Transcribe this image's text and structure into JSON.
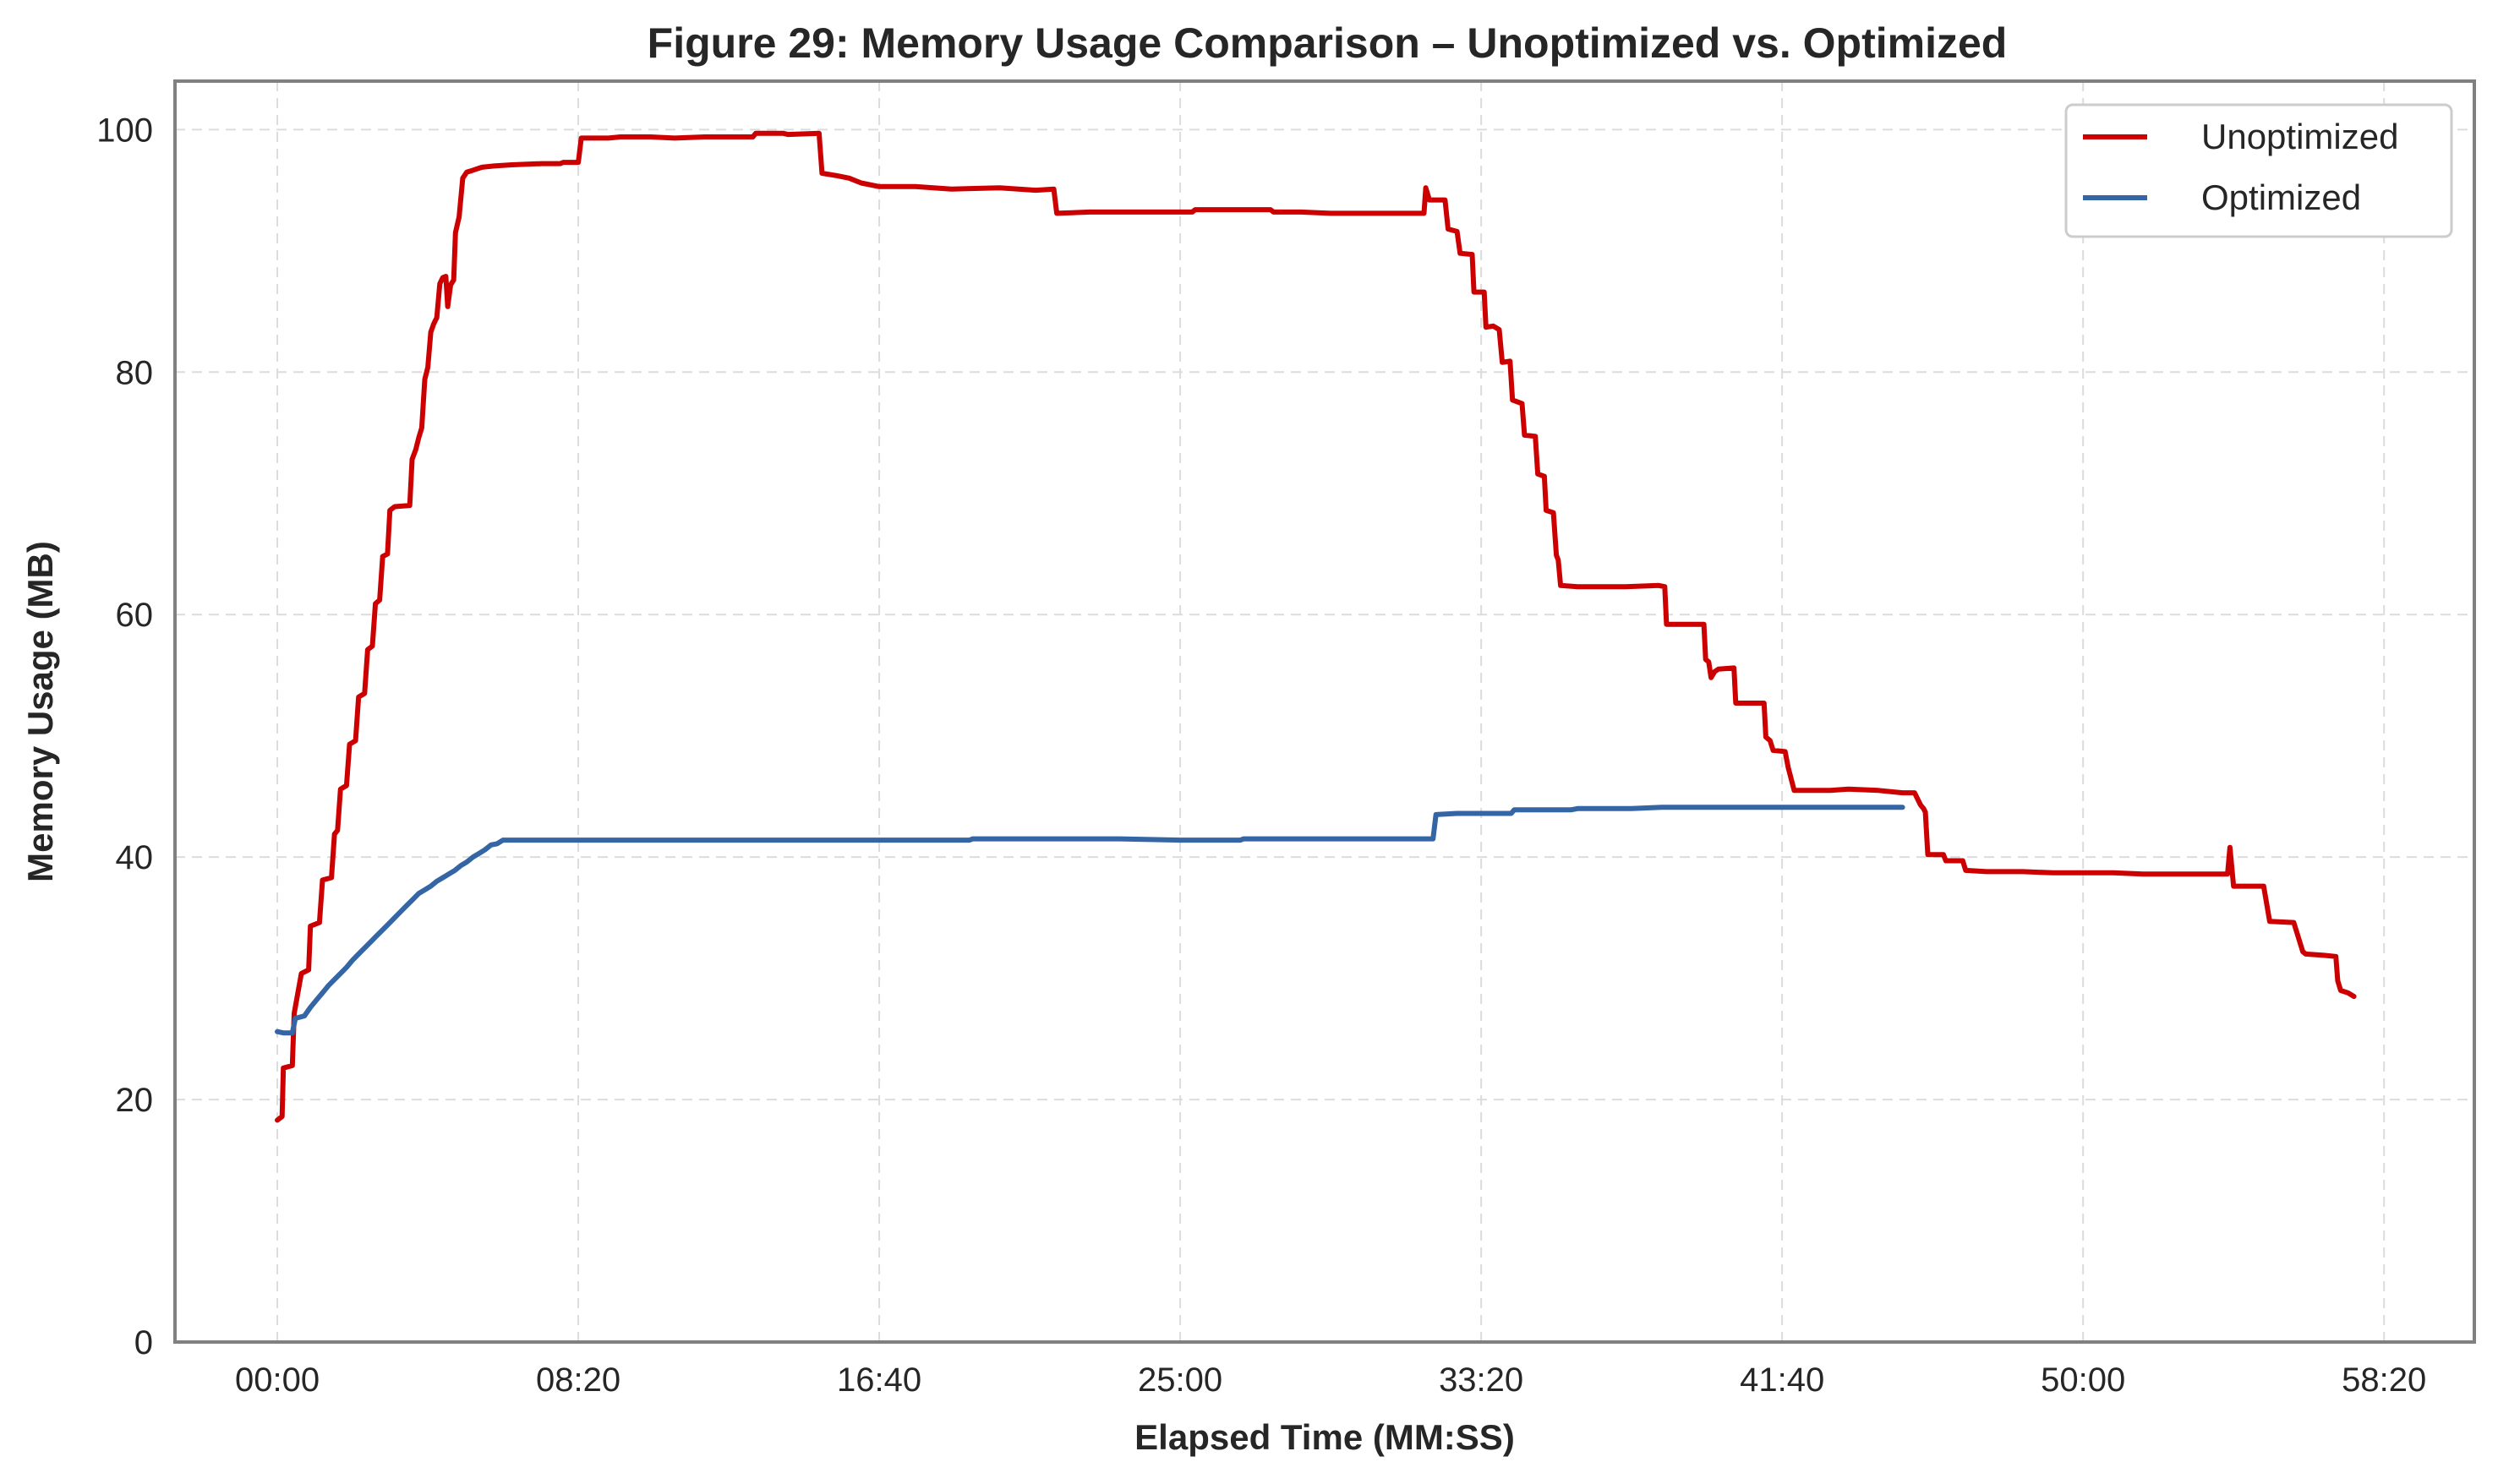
{
  "chart_data": {
    "type": "line",
    "title": "Figure 29: Memory Usage Comparison – Unoptimized vs. Optimized",
    "xlabel": "Elapsed Time (MM:SS)",
    "ylabel": "Memory Usage (MB)",
    "x_unit": "seconds",
    "xlim": [
      -170,
      3650
    ],
    "ylim": [
      0,
      104
    ],
    "x_ticks": [
      0,
      500,
      1000,
      1500,
      2000,
      2500,
      3000,
      3500
    ],
    "x_tick_labels": [
      "00:00",
      "08:20",
      "16:40",
      "25:00",
      "33:20",
      "41:40",
      "50:00",
      "58:20"
    ],
    "y_ticks": [
      0,
      20,
      40,
      60,
      80,
      100
    ],
    "y_tick_labels": [
      "0",
      "20",
      "40",
      "60",
      "80",
      "100"
    ],
    "grid": true,
    "legend_position": "top-right",
    "series": [
      {
        "name": "Unoptimized",
        "color": "#cc0000",
        "points": [
          [
            0,
            18.3
          ],
          [
            8,
            18.6
          ],
          [
            10,
            22.6
          ],
          [
            25,
            22.8
          ],
          [
            28,
            27.1
          ],
          [
            40,
            30.4
          ],
          [
            52,
            30.7
          ],
          [
            55,
            34.3
          ],
          [
            70,
            34.6
          ],
          [
            75,
            38.1
          ],
          [
            90,
            38.3
          ],
          [
            95,
            41.9
          ],
          [
            100,
            42.2
          ],
          [
            105,
            45.6
          ],
          [
            115,
            45.9
          ],
          [
            120,
            49.3
          ],
          [
            130,
            49.6
          ],
          [
            135,
            53.2
          ],
          [
            145,
            53.5
          ],
          [
            150,
            57.1
          ],
          [
            158,
            57.4
          ],
          [
            163,
            60.9
          ],
          [
            170,
            61.2
          ],
          [
            175,
            64.8
          ],
          [
            183,
            65.0
          ],
          [
            187,
            68.6
          ],
          [
            195,
            68.9
          ],
          [
            220,
            69.0
          ],
          [
            224,
            72.8
          ],
          [
            230,
            73.6
          ],
          [
            235,
            74.6
          ],
          [
            240,
            75.4
          ],
          [
            245,
            79.4
          ],
          [
            250,
            80.4
          ],
          [
            255,
            83.3
          ],
          [
            260,
            84.0
          ],
          [
            265,
            84.5
          ],
          [
            270,
            87.3
          ],
          [
            275,
            87.8
          ],
          [
            280,
            87.9
          ],
          [
            283,
            85.4
          ],
          [
            288,
            87.2
          ],
          [
            293,
            87.6
          ],
          [
            296,
            91.5
          ],
          [
            302,
            92.8
          ],
          [
            308,
            96.0
          ],
          [
            315,
            96.5
          ],
          [
            322,
            96.6
          ],
          [
            328,
            96.7
          ],
          [
            340,
            96.9
          ],
          [
            360,
            97.0
          ],
          [
            390,
            97.1
          ],
          [
            440,
            97.2
          ],
          [
            470,
            97.2
          ],
          [
            475,
            97.3
          ],
          [
            500,
            97.3
          ],
          [
            505,
            99.3
          ],
          [
            550,
            99.3
          ],
          [
            570,
            99.4
          ],
          [
            620,
            99.4
          ],
          [
            660,
            99.3
          ],
          [
            710,
            99.4
          ],
          [
            790,
            99.4
          ],
          [
            795,
            99.7
          ],
          [
            840,
            99.7
          ],
          [
            848,
            99.6
          ],
          [
            900,
            99.7
          ],
          [
            905,
            96.4
          ],
          [
            930,
            96.2
          ],
          [
            950,
            96.0
          ],
          [
            970,
            95.6
          ],
          [
            1000,
            95.3
          ],
          [
            1060,
            95.3
          ],
          [
            1120,
            95.1
          ],
          [
            1200,
            95.2
          ],
          [
            1260,
            95.0
          ],
          [
            1290,
            95.1
          ],
          [
            1295,
            93.1
          ],
          [
            1350,
            93.2
          ],
          [
            1450,
            93.2
          ],
          [
            1520,
            93.2
          ],
          [
            1525,
            93.4
          ],
          [
            1600,
            93.4
          ],
          [
            1650,
            93.4
          ],
          [
            1655,
            93.2
          ],
          [
            1700,
            93.2
          ],
          [
            1750,
            93.1
          ],
          [
            1905,
            93.1
          ],
          [
            1908,
            95.2
          ],
          [
            1914,
            94.2
          ],
          [
            1940,
            94.2
          ],
          [
            1945,
            91.8
          ],
          [
            1960,
            91.6
          ],
          [
            1965,
            89.8
          ],
          [
            1985,
            89.7
          ],
          [
            1988,
            86.6
          ],
          [
            2005,
            86.6
          ],
          [
            2008,
            83.7
          ],
          [
            2020,
            83.8
          ],
          [
            2030,
            83.5
          ],
          [
            2035,
            80.8
          ],
          [
            2048,
            80.9
          ],
          [
            2052,
            77.7
          ],
          [
            2068,
            77.4
          ],
          [
            2072,
            74.8
          ],
          [
            2090,
            74.7
          ],
          [
            2094,
            71.6
          ],
          [
            2105,
            71.4
          ],
          [
            2108,
            68.6
          ],
          [
            2120,
            68.4
          ],
          [
            2125,
            64.9
          ],
          [
            2128,
            64.5
          ],
          [
            2132,
            62.4
          ],
          [
            2160,
            62.3
          ],
          [
            2240,
            62.3
          ],
          [
            2295,
            62.4
          ],
          [
            2305,
            62.3
          ],
          [
            2308,
            59.2
          ],
          [
            2340,
            59.2
          ],
          [
            2370,
            59.2
          ],
          [
            2373,
            56.3
          ],
          [
            2378,
            56.1
          ],
          [
            2382,
            54.8
          ],
          [
            2388,
            55.3
          ],
          [
            2394,
            55.5
          ],
          [
            2420,
            55.6
          ],
          [
            2423,
            52.7
          ],
          [
            2470,
            52.7
          ],
          [
            2473,
            49.9
          ],
          [
            2480,
            49.6
          ],
          [
            2485,
            48.8
          ],
          [
            2505,
            48.7
          ],
          [
            2510,
            47.4
          ],
          [
            2520,
            45.5
          ],
          [
            2540,
            45.5
          ],
          [
            2580,
            45.5
          ],
          [
            2610,
            45.6
          ],
          [
            2660,
            45.5
          ],
          [
            2700,
            45.3
          ],
          [
            2720,
            45.3
          ],
          [
            2730,
            44.3
          ],
          [
            2735,
            44.0
          ],
          [
            2738,
            43.7
          ],
          [
            2742,
            40.2
          ],
          [
            2768,
            40.2
          ],
          [
            2772,
            39.7
          ],
          [
            2800,
            39.7
          ],
          [
            2805,
            38.9
          ],
          [
            2840,
            38.8
          ],
          [
            2900,
            38.8
          ],
          [
            2950,
            38.7
          ],
          [
            3050,
            38.7
          ],
          [
            3100,
            38.6
          ],
          [
            3240,
            38.6
          ],
          [
            3244,
            40.8
          ],
          [
            3250,
            37.6
          ],
          [
            3300,
            37.6
          ],
          [
            3310,
            34.7
          ],
          [
            3350,
            34.6
          ],
          [
            3365,
            32.2
          ],
          [
            3370,
            32.0
          ],
          [
            3400,
            31.9
          ],
          [
            3420,
            31.8
          ],
          [
            3423,
            29.8
          ],
          [
            3428,
            29.0
          ],
          [
            3440,
            28.8
          ],
          [
            3450,
            28.5
          ]
        ]
      },
      {
        "name": "Optimized",
        "color": "#3465a4",
        "points": [
          [
            0,
            25.6
          ],
          [
            10,
            25.5
          ],
          [
            25,
            25.5
          ],
          [
            30,
            26.7
          ],
          [
            45,
            26.9
          ],
          [
            55,
            27.6
          ],
          [
            65,
            28.2
          ],
          [
            75,
            28.8
          ],
          [
            85,
            29.4
          ],
          [
            95,
            29.9
          ],
          [
            105,
            30.4
          ],
          [
            115,
            30.9
          ],
          [
            125,
            31.5
          ],
          [
            135,
            32.0
          ],
          [
            145,
            32.5
          ],
          [
            155,
            33.0
          ],
          [
            165,
            33.5
          ],
          [
            175,
            34.0
          ],
          [
            185,
            34.5
          ],
          [
            195,
            35.0
          ],
          [
            205,
            35.5
          ],
          [
            215,
            36.0
          ],
          [
            225,
            36.5
          ],
          [
            235,
            37.0
          ],
          [
            245,
            37.3
          ],
          [
            255,
            37.6
          ],
          [
            265,
            38.0
          ],
          [
            275,
            38.3
          ],
          [
            285,
            38.6
          ],
          [
            295,
            38.9
          ],
          [
            305,
            39.3
          ],
          [
            315,
            39.6
          ],
          [
            325,
            40.0
          ],
          [
            335,
            40.3
          ],
          [
            345,
            40.6
          ],
          [
            355,
            41.0
          ],
          [
            365,
            41.1
          ],
          [
            375,
            41.4
          ],
          [
            450,
            41.4
          ],
          [
            600,
            41.4
          ],
          [
            800,
            41.4
          ],
          [
            1000,
            41.4
          ],
          [
            1150,
            41.4
          ],
          [
            1155,
            41.5
          ],
          [
            1300,
            41.5
          ],
          [
            1400,
            41.5
          ],
          [
            1500,
            41.4
          ],
          [
            1600,
            41.4
          ],
          [
            1605,
            41.5
          ],
          [
            1750,
            41.5
          ],
          [
            1920,
            41.5
          ],
          [
            1925,
            43.5
          ],
          [
            1960,
            43.6
          ],
          [
            2050,
            43.6
          ],
          [
            2055,
            43.9
          ],
          [
            2150,
            43.9
          ],
          [
            2160,
            44.0
          ],
          [
            2250,
            44.0
          ],
          [
            2300,
            44.1
          ],
          [
            2500,
            44.1
          ],
          [
            2700,
            44.1
          ]
        ]
      }
    ]
  }
}
